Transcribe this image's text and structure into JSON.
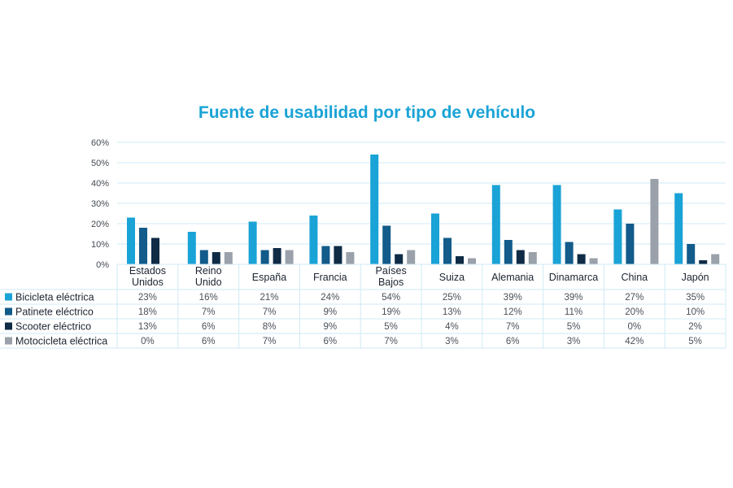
{
  "colors": {
    "title": "#1aa3d6",
    "grid": "#cfeaf4",
    "series": [
      "#1aa3d6",
      "#125b8a",
      "#0f2b45",
      "#9aa1aa"
    ]
  },
  "chart_data": {
    "type": "bar",
    "title": "Fuente de usabilidad por tipo de vehículo",
    "xlabel": "",
    "ylabel": "",
    "ylim": [
      0,
      60
    ],
    "yticks": [
      "0%",
      "10%",
      "20%",
      "30%",
      "40%",
      "50%",
      "60%"
    ],
    "grid": true,
    "legend": "table-left",
    "categories": [
      [
        "Estados",
        "Unidos"
      ],
      [
        "Reino",
        "Unido"
      ],
      [
        "España"
      ],
      [
        "Francia"
      ],
      [
        "Países",
        "Bajos"
      ],
      [
        "Suiza"
      ],
      [
        "Alemania"
      ],
      [
        "Dinamarca"
      ],
      [
        "China"
      ],
      [
        "Japón"
      ]
    ],
    "series": [
      {
        "name": "Bicicleta eléctrica",
        "values": [
          23,
          16,
          21,
          24,
          54,
          25,
          39,
          39,
          27,
          35
        ],
        "labels": [
          "23%",
          "16%",
          "21%",
          "24%",
          "54%",
          "25%",
          "39%",
          "39%",
          "27%",
          "35%"
        ]
      },
      {
        "name": "Patinete eléctrico",
        "values": [
          18,
          7,
          7,
          9,
          19,
          13,
          12,
          11,
          20,
          10
        ],
        "labels": [
          "18%",
          "7%",
          "7%",
          "9%",
          "19%",
          "13%",
          "12%",
          "11%",
          "20%",
          "10%"
        ]
      },
      {
        "name": "Scooter eléctrico",
        "values": [
          13,
          6,
          8,
          9,
          5,
          4,
          7,
          5,
          0,
          2
        ],
        "labels": [
          "13%",
          "6%",
          "8%",
          "9%",
          "5%",
          "4%",
          "7%",
          "5%",
          "0%",
          "2%"
        ]
      },
      {
        "name": "Motocicleta eléctrica",
        "values": [
          0,
          6,
          7,
          6,
          7,
          3,
          6,
          3,
          42,
          5
        ],
        "labels": [
          "0%",
          "6%",
          "7%",
          "6%",
          "7%",
          "3%",
          "6%",
          "3%",
          "42%",
          "5%"
        ]
      }
    ]
  }
}
